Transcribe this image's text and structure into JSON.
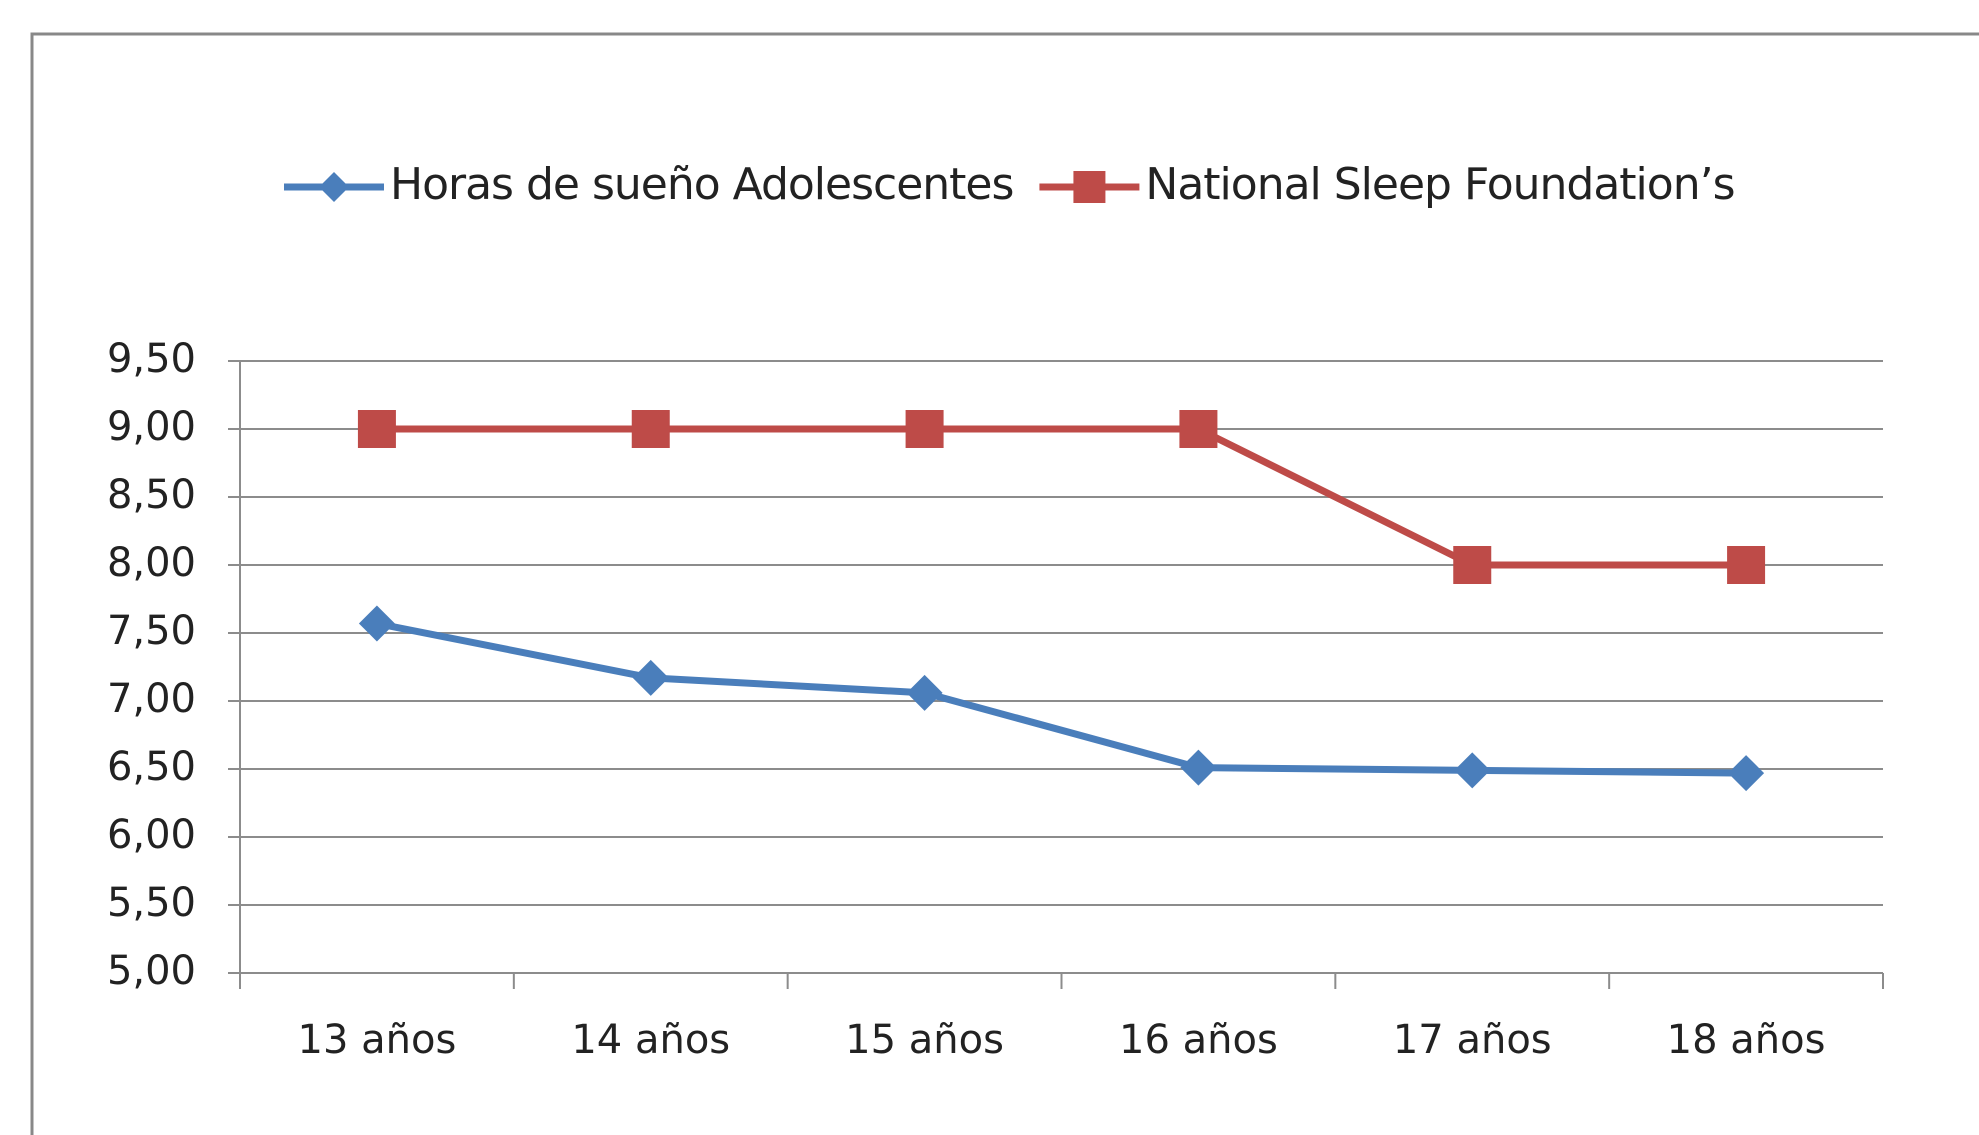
{
  "chart_data": {
    "type": "line",
    "categories": [
      "13 años",
      "14 años",
      "15 años",
      "16 años",
      "17 años",
      "18 años"
    ],
    "series": [
      {
        "name": "Horas de sueño Adolescentes",
        "color": "#4a7ebb",
        "marker": "diamond",
        "values": [
          7.57,
          7.17,
          7.06,
          6.51,
          6.49,
          6.47
        ]
      },
      {
        "name": "National Sleep Foundation’s",
        "color": "#be4b48",
        "marker": "square",
        "values": [
          9,
          9,
          9,
          9,
          8,
          8
        ]
      }
    ],
    "ylim": [
      5,
      9.5
    ],
    "yticks": [
      {
        "value": 5,
        "label": "5,00"
      },
      {
        "value": 5.5,
        "label": "5,50"
      },
      {
        "value": 6,
        "label": "6,00"
      },
      {
        "value": 6.5,
        "label": "6,50"
      },
      {
        "value": 7,
        "label": "7,00"
      },
      {
        "value": 7.5,
        "label": "7,50"
      },
      {
        "value": 8,
        "label": "8,00"
      },
      {
        "value": 8.5,
        "label": "8,50"
      },
      {
        "value": 9,
        "label": "9,00"
      },
      {
        "value": 9.5,
        "label": "9,50"
      }
    ],
    "grid": true,
    "legend": "top"
  }
}
